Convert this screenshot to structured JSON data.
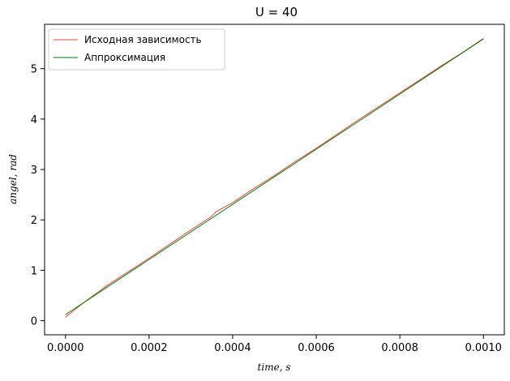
{
  "chart_data": {
    "type": "line",
    "title": "U = 40",
    "xlabel": "time, s",
    "ylabel": "angel, rad",
    "xlim": [
      -5e-05,
      0.00105
    ],
    "ylim": [
      -0.28,
      5.88
    ],
    "xticks": [
      0,
      0.0002,
      0.0004,
      0.0006,
      0.0008,
      0.001
    ],
    "xtick_labels": [
      "0.0000",
      "0.0002",
      "0.0004",
      "0.0006",
      "0.0008",
      "0.0010"
    ],
    "yticks": [
      0,
      1,
      2,
      3,
      4,
      5
    ],
    "ytick_labels": [
      "0",
      "1",
      "2",
      "3",
      "4",
      "5"
    ],
    "grid": false,
    "legend_position": "upper-left",
    "series": [
      {
        "name": "Исходная зависимость",
        "color": "#e8483c",
        "x": [
          0,
          5e-05,
          0.0001,
          0.00015,
          0.0002,
          0.00025,
          0.0003,
          0.00035,
          0.00036,
          0.0004,
          0.00045,
          0.0005,
          0.00055,
          0.0006,
          0.00065,
          0.0007,
          0.00075,
          0.0008,
          0.00085,
          0.0009,
          0.00095,
          0.001
        ],
        "y": [
          0.07,
          0.4,
          0.7,
          0.97,
          1.24,
          1.52,
          1.8,
          2.07,
          2.16,
          2.34,
          2.62,
          2.88,
          3.16,
          3.42,
          3.7,
          3.98,
          4.25,
          4.52,
          4.79,
          5.06,
          5.32,
          5.6
        ]
      },
      {
        "name": "Аппроксимация",
        "color": "#0a7a0a",
        "x": [
          0,
          0.001
        ],
        "y": [
          0.12,
          5.59
        ]
      }
    ]
  }
}
